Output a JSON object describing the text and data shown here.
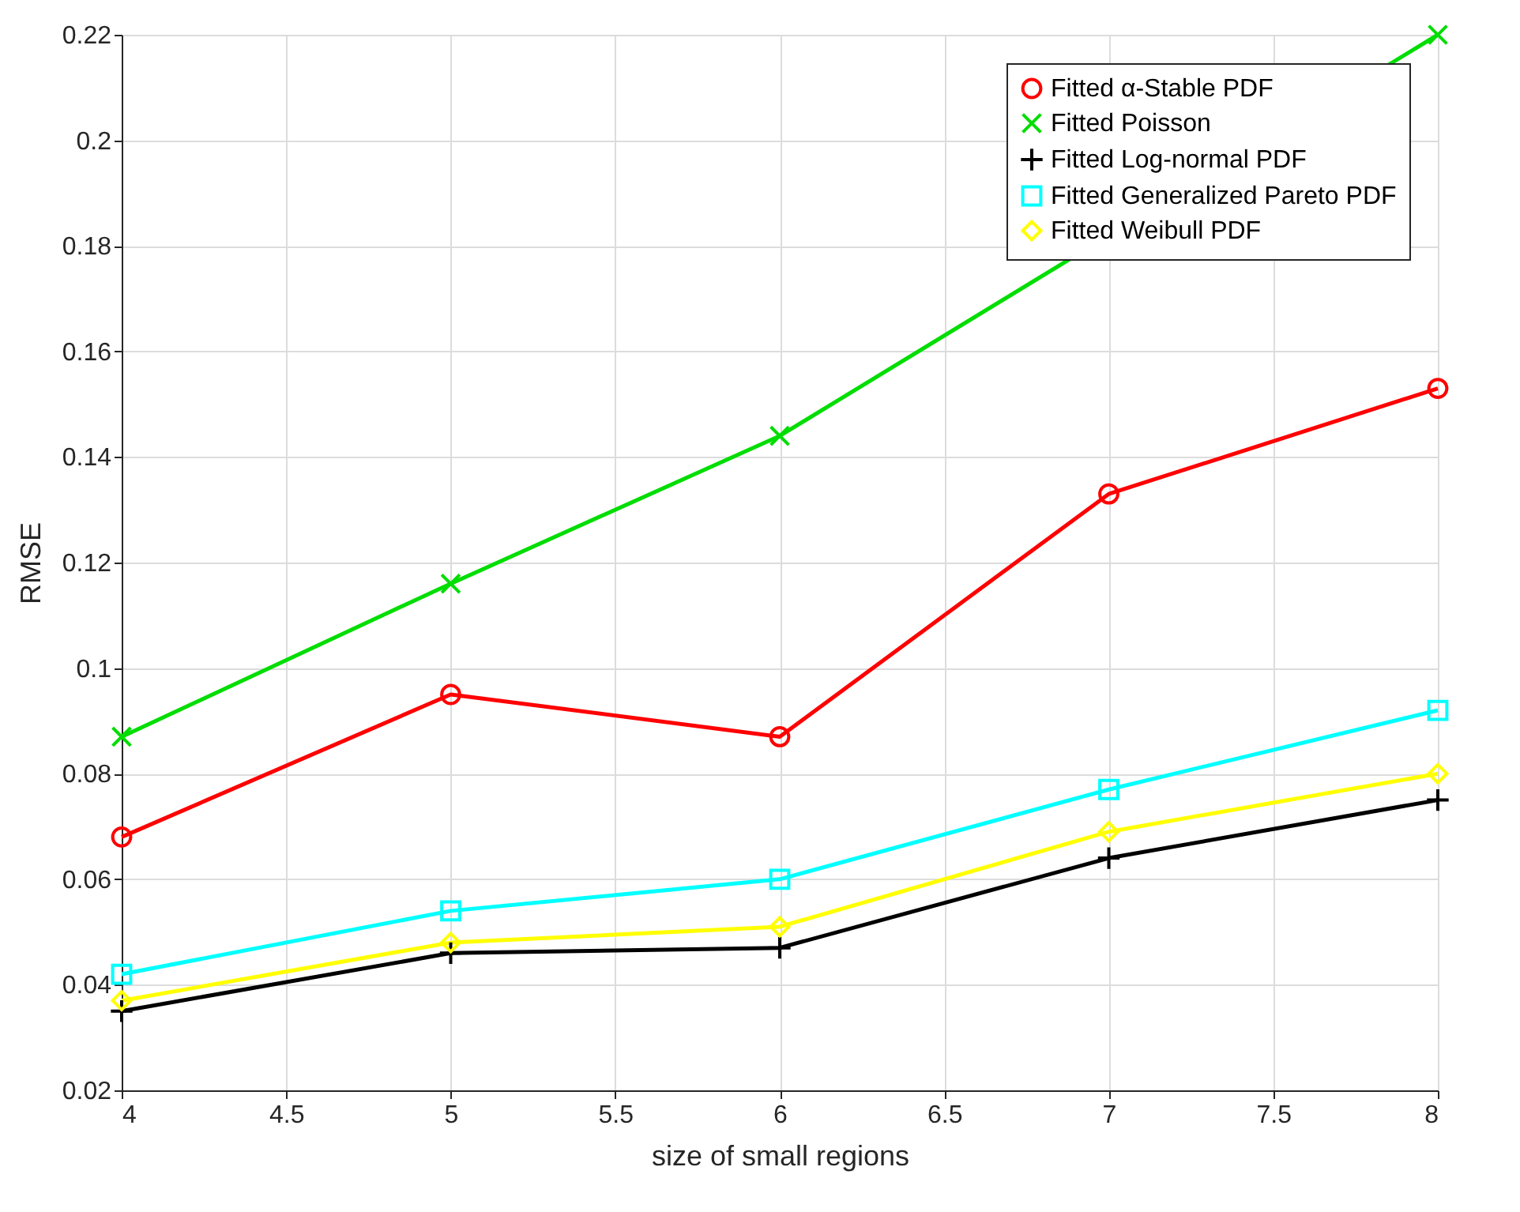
{
  "chart_data": {
    "type": "line",
    "xlabel": "size of small regions",
    "ylabel": "RMSE",
    "x": [
      4,
      5,
      6,
      7,
      8
    ],
    "series": [
      {
        "name": "Fitted α-Stable PDF",
        "color": "#ff0000",
        "marker": "circle",
        "values": [
          0.068,
          0.095,
          0.087,
          0.133,
          0.153
        ]
      },
      {
        "name": "Fitted Poisson",
        "color": "#00dd00",
        "marker": "cross",
        "values": [
          0.087,
          0.116,
          0.144,
          null,
          0.22
        ]
      },
      {
        "name": "Fitted Log-normal PDF",
        "color": "#000000",
        "marker": "plus",
        "values": [
          0.035,
          0.046,
          0.047,
          0.064,
          0.075
        ]
      },
      {
        "name": "Fitted Generalized Pareto PDF",
        "color": "#00ffff",
        "marker": "square",
        "values": [
          0.042,
          0.054,
          0.06,
          0.077,
          0.092
        ]
      },
      {
        "name": "Fitted Weibull PDF",
        "color": "#ffff00",
        "marker": "diamond",
        "values": [
          0.037,
          0.048,
          0.051,
          0.069,
          0.08
        ]
      }
    ],
    "xlim": [
      4,
      8
    ],
    "xticks": [
      4,
      4.5,
      5,
      5.5,
      6,
      6.5,
      7,
      7.5,
      8
    ],
    "ylim": [
      0.02,
      0.22
    ],
    "yticks": [
      0.02,
      0.04,
      0.06,
      0.08,
      0.1,
      0.12,
      0.14,
      0.16,
      0.18,
      0.2,
      0.22
    ],
    "grid": true,
    "legend": "top right",
    "line_style": "solid"
  }
}
